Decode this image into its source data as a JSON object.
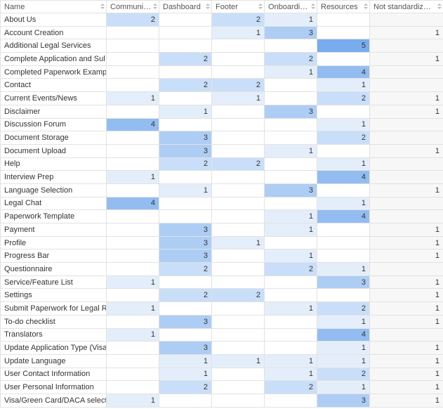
{
  "table": {
    "columns": [
      "Name",
      "Communi…",
      "Dashboard",
      "Footer",
      "Onboardi…",
      "Resources",
      "Not standardiz…"
    ],
    "color_scale": [
      "#e4eefb",
      "#78acee"
    ],
    "neutral_column_color": "#f7f7f7",
    "rows": [
      {
        "name": "About Us",
        "values": [
          2,
          null,
          2,
          1,
          null,
          null
        ]
      },
      {
        "name": "Account Creation",
        "values": [
          null,
          null,
          1,
          3,
          null,
          1
        ]
      },
      {
        "name": "Additional Legal Services",
        "values": [
          null,
          null,
          null,
          null,
          5,
          null
        ]
      },
      {
        "name": "Complete Application and Sul",
        "values": [
          null,
          2,
          null,
          2,
          null,
          1
        ]
      },
      {
        "name": "Completed Paperwork Examp",
        "values": [
          null,
          null,
          null,
          1,
          4,
          null
        ]
      },
      {
        "name": "Contact",
        "values": [
          null,
          2,
          2,
          null,
          1,
          null
        ]
      },
      {
        "name": "Current Events/News",
        "values": [
          1,
          null,
          1,
          null,
          2,
          1
        ]
      },
      {
        "name": "Disclaimer",
        "values": [
          null,
          1,
          null,
          3,
          null,
          1
        ]
      },
      {
        "name": "Discussion Forum",
        "values": [
          4,
          null,
          null,
          null,
          1,
          null
        ]
      },
      {
        "name": "Document Storage",
        "values": [
          null,
          3,
          null,
          null,
          2,
          null
        ]
      },
      {
        "name": "Document Upload",
        "values": [
          null,
          3,
          null,
          1,
          null,
          1
        ]
      },
      {
        "name": "Help",
        "values": [
          null,
          2,
          2,
          null,
          1,
          null
        ]
      },
      {
        "name": "Interview Prep",
        "values": [
          1,
          null,
          null,
          null,
          4,
          null
        ]
      },
      {
        "name": "Language Selection",
        "values": [
          null,
          1,
          null,
          3,
          null,
          1
        ]
      },
      {
        "name": "Legal Chat",
        "values": [
          4,
          null,
          null,
          null,
          1,
          null
        ]
      },
      {
        "name": "Paperwork Template",
        "values": [
          null,
          null,
          null,
          1,
          4,
          null
        ]
      },
      {
        "name": "Payment",
        "values": [
          null,
          3,
          null,
          1,
          null,
          1
        ]
      },
      {
        "name": "Profile",
        "values": [
          null,
          3,
          1,
          null,
          null,
          1
        ]
      },
      {
        "name": "Progress Bar",
        "values": [
          null,
          3,
          null,
          1,
          null,
          1
        ]
      },
      {
        "name": "Questionnaire",
        "values": [
          null,
          2,
          null,
          2,
          1,
          null
        ]
      },
      {
        "name": "Service/Feature List",
        "values": [
          1,
          null,
          null,
          null,
          3,
          1
        ]
      },
      {
        "name": "Settings",
        "values": [
          null,
          2,
          2,
          null,
          null,
          1
        ]
      },
      {
        "name": "Submit Paperwork for Legal R",
        "values": [
          1,
          null,
          null,
          1,
          2,
          1
        ]
      },
      {
        "name": "To-do checklist",
        "values": [
          null,
          3,
          null,
          null,
          1,
          1
        ]
      },
      {
        "name": "Translators",
        "values": [
          1,
          null,
          null,
          null,
          4,
          null
        ]
      },
      {
        "name": "Update Application Type (Visa",
        "values": [
          null,
          3,
          null,
          null,
          1,
          1
        ]
      },
      {
        "name": "Update Language",
        "values": [
          null,
          1,
          1,
          1,
          1,
          1
        ]
      },
      {
        "name": "User Contact Information",
        "values": [
          null,
          1,
          null,
          1,
          2,
          1
        ]
      },
      {
        "name": "User Personal Information",
        "values": [
          null,
          2,
          null,
          2,
          1,
          1
        ]
      },
      {
        "name": "Visa/Green Card/DACA select",
        "values": [
          1,
          null,
          null,
          null,
          3,
          1
        ]
      }
    ]
  }
}
